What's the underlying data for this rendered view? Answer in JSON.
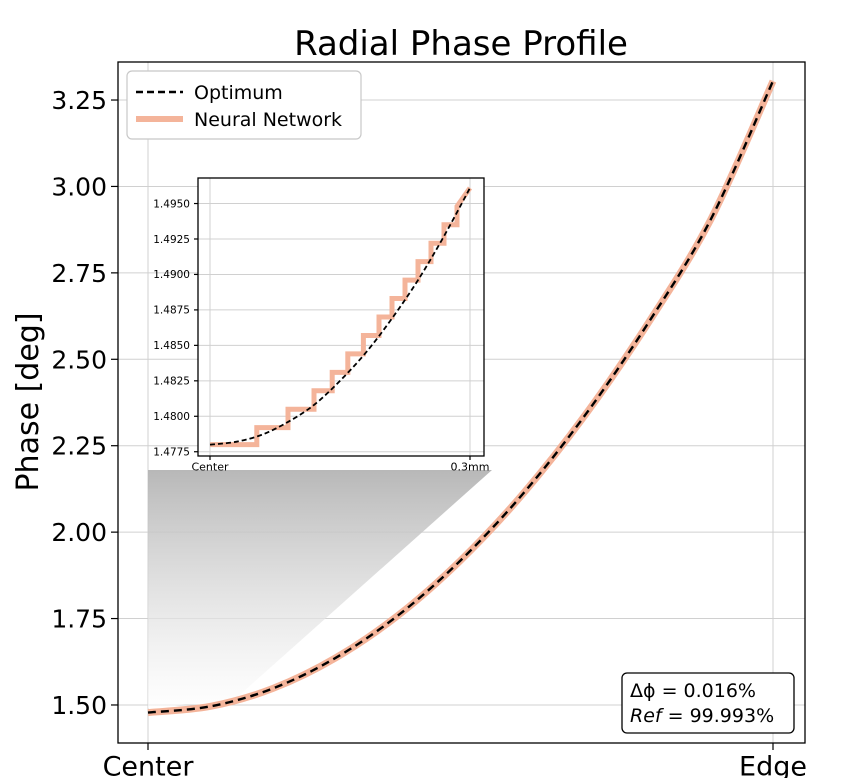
{
  "chart_data": [
    {
      "type": "line",
      "title": "Radial Phase Profile",
      "xlabel": "",
      "ylabel": "Phase [deg]",
      "x_tick_labels": [
        "Center",
        "Edge"
      ],
      "y_ticks": [
        1.5,
        1.75,
        2.0,
        2.25,
        2.5,
        2.75,
        3.0,
        3.25
      ],
      "y_tick_labels": [
        "1.50",
        "1.75",
        "2.00",
        "2.25",
        "2.50",
        "2.75",
        "3.00",
        "3.25"
      ],
      "xlim": [
        0,
        1
      ],
      "ylim": [
        1.39,
        3.36
      ],
      "grid": true,
      "legend": "top-left",
      "series": [
        {
          "name": "Optimum",
          "style": "dashed",
          "color": "#000000",
          "x": [
            0,
            0.1,
            0.2,
            0.3,
            0.4,
            0.5,
            0.6,
            0.7,
            0.8,
            0.9,
            1.0
          ],
          "y": [
            1.478,
            1.496,
            1.548,
            1.636,
            1.759,
            1.918,
            2.111,
            2.34,
            2.604,
            2.903,
            3.305
          ]
        },
        {
          "name": "Neural Network",
          "style": "solid",
          "color": "#f4b49a",
          "x": [
            0,
            0.1,
            0.2,
            0.3,
            0.4,
            0.5,
            0.6,
            0.7,
            0.8,
            0.9,
            1.0
          ],
          "y": [
            1.478,
            1.496,
            1.548,
            1.636,
            1.759,
            1.918,
            2.111,
            2.34,
            2.604,
            2.903,
            3.305
          ]
        }
      ],
      "annotation": {
        "line1": "Δϕ = 0.016%",
        "line2_name": "Ref",
        "line2_value": " = 99.993%"
      }
    },
    {
      "type": "line",
      "title": "",
      "inset": true,
      "x_tick_labels": [
        "Center",
        "0.3mm"
      ],
      "y_ticks": [
        1.4775,
        1.48,
        1.4825,
        1.485,
        1.4875,
        1.49,
        1.4925,
        1.495
      ],
      "y_tick_labels": [
        "1.4775",
        "1.4800",
        "1.4825",
        "1.4850",
        "1.4875",
        "1.4900",
        "1.4925",
        "1.4950"
      ],
      "xlim": [
        -0.03,
        1.03
      ],
      "ylim": [
        1.4772,
        1.4968
      ],
      "grid": true,
      "series": [
        {
          "name": "Optimum",
          "style": "dashed",
          "color": "#000000",
          "x": [
            0,
            0.1,
            0.2,
            0.3,
            0.4,
            0.5,
            0.6,
            0.7,
            0.8,
            0.9,
            1.0
          ],
          "y": [
            1.478,
            1.4782,
            1.4787,
            1.4796,
            1.4808,
            1.4825,
            1.4845,
            1.4869,
            1.4896,
            1.4927,
            1.4961
          ]
        },
        {
          "name": "Neural Network",
          "style": "step",
          "color": "#f4b49a",
          "x": [
            0,
            0.18,
            0.18,
            0.3,
            0.3,
            0.4,
            0.4,
            0.47,
            0.47,
            0.53,
            0.53,
            0.59,
            0.59,
            0.65,
            0.65,
            0.7,
            0.7,
            0.75,
            0.75,
            0.8,
            0.8,
            0.85,
            0.85,
            0.9,
            0.9,
            0.95,
            0.95,
            1.0
          ],
          "y": [
            1.478,
            1.478,
            1.4792,
            1.4792,
            1.4805,
            1.4805,
            1.4818,
            1.4818,
            1.4831,
            1.4831,
            1.4844,
            1.4844,
            1.4857,
            1.4857,
            1.487,
            1.487,
            1.4883,
            1.4883,
            1.4896,
            1.4896,
            1.4909,
            1.4909,
            1.4922,
            1.4922,
            1.4935,
            1.4935,
            1.4948,
            1.4961
          ]
        }
      ]
    }
  ]
}
